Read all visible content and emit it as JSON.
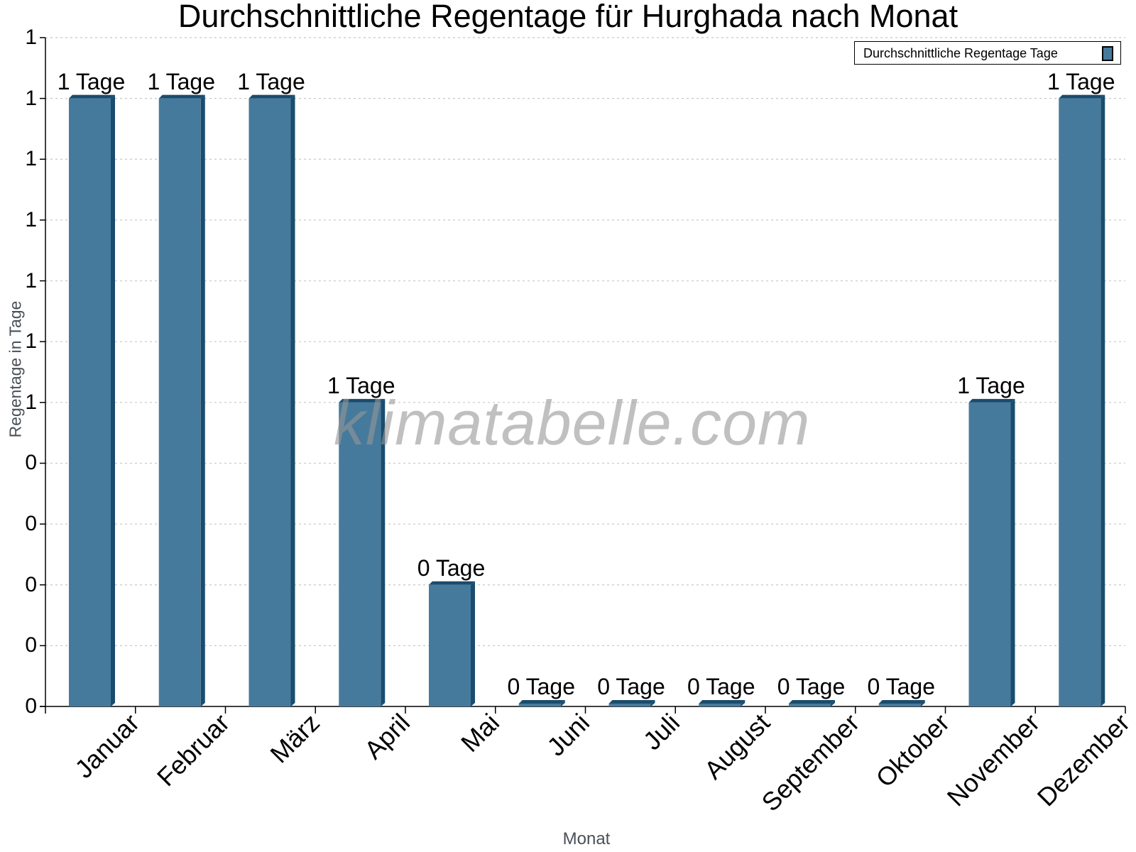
{
  "chart_data": {
    "type": "bar",
    "title": "Durchschnittliche Regentage für Hurghada nach Monat",
    "xlabel": "Monat",
    "ylabel": "Regentage in Tage",
    "categories": [
      "Januar",
      "Februar",
      "März",
      "April",
      "Mai",
      "Juni",
      "Juli",
      "August",
      "September",
      "Oktober",
      "November",
      "Dezember"
    ],
    "series": [
      {
        "name": "Durchschnittliche Regentage Tage",
        "values": [
          1.0,
          1.0,
          1.0,
          0.5,
          0.2,
          0.0,
          0.0,
          0.0,
          0.0,
          0.0,
          0.5,
          1.0
        ],
        "value_labels": [
          "1 Tage",
          "1 Tage",
          "1 Tage",
          "1 Tage",
          "0 Tage",
          "0 Tage",
          "0 Tage",
          "0 Tage",
          "0 Tage",
          "0 Tage",
          "1 Tage",
          "1 Tage"
        ],
        "color": "#467a9c",
        "edge_color": "#1a4c6e"
      }
    ],
    "y_tick_labels": [
      "0",
      "0",
      "0",
      "0",
      "0",
      "1",
      "1",
      "1",
      "1",
      "1",
      "1",
      "1"
    ],
    "ylim": [
      0,
      1.1
    ],
    "grid": true,
    "grid_style": "dotted horizontal",
    "legend_position": "top-right",
    "watermark": "klimatabelle.com"
  },
  "legend": {
    "label": "Durchschnittliche Regentage Tage"
  },
  "colors": {
    "bar": "#467a9c",
    "bar_dark": "#1a4c6e",
    "grid": "#c8c8c8",
    "axis": "#000000",
    "watermark": "#969696"
  }
}
